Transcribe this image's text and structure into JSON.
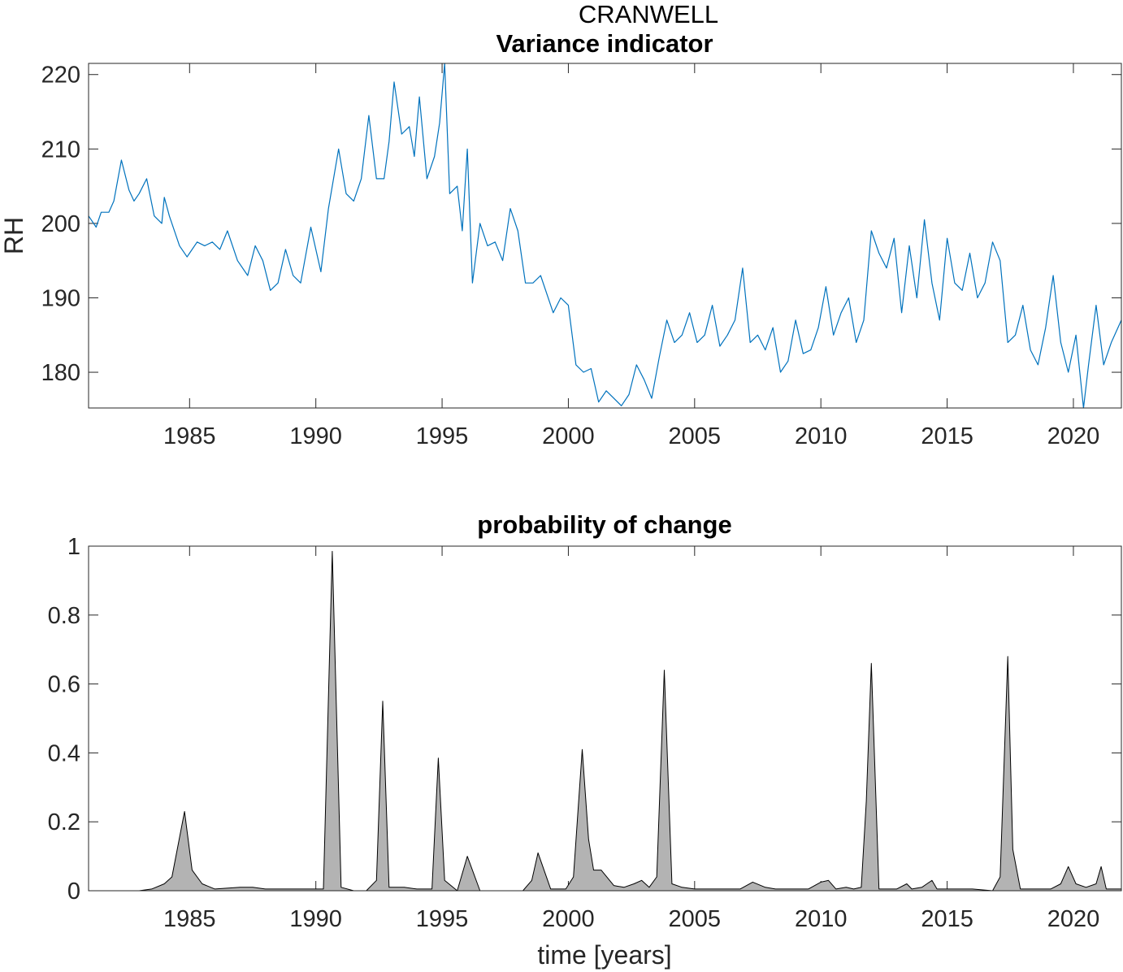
{
  "figure": {
    "suptitle": "CRANWELL",
    "colors": {
      "line": "#0072BD",
      "area_fill": "#B3B3B3",
      "area_edge": "#000000",
      "axes": "#262626"
    }
  },
  "chart_data": [
    {
      "type": "line",
      "title": "Variance indicator",
      "xlabel": "",
      "ylabel": "RH",
      "xlim": [
        1981.0,
        2021.9
      ],
      "ylim": [
        175.2,
        221.5
      ],
      "xticks": [
        1985,
        1990,
        1995,
        2000,
        2005,
        2010,
        2015,
        2020
      ],
      "yticks": [
        180,
        190,
        200,
        210,
        220
      ],
      "grid": false,
      "series": [
        {
          "x": [
            1981.0,
            1981.3,
            1981.5,
            1981.8,
            1982.0,
            1982.3,
            1982.6,
            1982.8,
            1983.0,
            1983.3,
            1983.6,
            1983.9,
            1984.0,
            1984.2,
            1984.6,
            1984.9,
            1985.0,
            1985.3,
            1985.6,
            1985.9,
            1986.2,
            1986.5,
            1986.9,
            1987.3,
            1987.6,
            1987.9,
            1988.2,
            1988.5,
            1988.8,
            1989.1,
            1989.4,
            1989.8,
            1990.2,
            1990.5,
            1990.9,
            1991.2,
            1991.5,
            1991.8,
            1992.1,
            1992.4,
            1992.7,
            1992.9,
            1993.1,
            1993.4,
            1993.7,
            1993.9,
            1994.1,
            1994.4,
            1994.7,
            1994.9,
            1995.1,
            1995.3,
            1995.6,
            1995.8,
            1996.0,
            1996.2,
            1996.5,
            1996.8,
            1997.1,
            1997.4,
            1997.7,
            1998.0,
            1998.3,
            1998.6,
            1998.9,
            1999.1,
            1999.4,
            1999.7,
            2000.0,
            2000.3,
            2000.6,
            2000.9,
            2001.2,
            2001.5,
            2001.8,
            2002.1,
            2002.4,
            2002.7,
            2003.0,
            2003.3,
            2003.6,
            2003.9,
            2004.2,
            2004.5,
            2004.8,
            2005.1,
            2005.4,
            2005.7,
            2006.0,
            2006.3,
            2006.6,
            2006.9,
            2007.2,
            2007.5,
            2007.8,
            2008.1,
            2008.4,
            2008.7,
            2009.0,
            2009.3,
            2009.6,
            2009.9,
            2010.2,
            2010.5,
            2010.8,
            2011.1,
            2011.4,
            2011.7,
            2012.0,
            2012.3,
            2012.6,
            2012.9,
            2013.2,
            2013.5,
            2013.8,
            2014.1,
            2014.4,
            2014.7,
            2015.0,
            2015.3,
            2015.6,
            2015.9,
            2016.2,
            2016.5,
            2016.8,
            2017.1,
            2017.4,
            2017.7,
            2018.0,
            2018.3,
            2018.6,
            2018.9,
            2019.2,
            2019.5,
            2019.8,
            2020.1,
            2020.4,
            2020.6,
            2020.9,
            2021.2,
            2021.5,
            2021.9
          ],
          "y": [
            201.0,
            199.5,
            201.5,
            201.5,
            203.0,
            208.5,
            204.5,
            203.0,
            204.0,
            206.0,
            201.0,
            200.0,
            203.5,
            201.0,
            197.0,
            195.5,
            196.0,
            197.5,
            197.0,
            197.5,
            196.5,
            199.0,
            195.0,
            193.0,
            197.0,
            195.0,
            191.0,
            192.0,
            196.5,
            193.0,
            192.0,
            199.5,
            193.5,
            202.0,
            210.0,
            204.0,
            203.0,
            206.0,
            214.5,
            206.0,
            206.0,
            211.0,
            219.0,
            212.0,
            213.0,
            209.0,
            217.0,
            206.0,
            209.0,
            213.5,
            221.5,
            204.0,
            205.0,
            199.0,
            210.0,
            192.0,
            200.0,
            197.0,
            197.5,
            195.0,
            202.0,
            199.0,
            192.0,
            192.0,
            193.0,
            191.0,
            188.0,
            190.0,
            189.0,
            181.0,
            180.0,
            180.5,
            176.0,
            177.5,
            176.5,
            175.5,
            177.0,
            181.0,
            179.0,
            176.5,
            182.0,
            187.0,
            184.0,
            185.0,
            188.0,
            184.0,
            185.0,
            189.0,
            183.5,
            185.0,
            187.0,
            194.0,
            184.0,
            185.0,
            183.0,
            186.0,
            180.0,
            181.5,
            187.0,
            182.5,
            183.0,
            186.0,
            191.5,
            185.0,
            188.0,
            190.0,
            184.0,
            187.0,
            199.0,
            196.0,
            194.0,
            198.0,
            188.0,
            197.0,
            190.0,
            200.5,
            192.0,
            187.0,
            198.0,
            192.0,
            191.0,
            196.0,
            190.0,
            192.0,
            197.5,
            195.0,
            184.0,
            185.0,
            189.0,
            183.0,
            181.0,
            186.0,
            193.0,
            184.0,
            180.0,
            185.0,
            175.0,
            181.0,
            189.0,
            181.0,
            184.0,
            187.0
          ]
        }
      ]
    },
    {
      "type": "area",
      "title": "probability of change",
      "xlabel": "time [years]",
      "ylabel": "",
      "xlim": [
        1981.0,
        2021.9
      ],
      "ylim": [
        0,
        1
      ],
      "xticks": [
        1985,
        1990,
        1995,
        2000,
        2005,
        2010,
        2015,
        2020
      ],
      "yticks": [
        0,
        0.2,
        0.4,
        0.6,
        0.8,
        1
      ],
      "ytick_labels": [
        "0",
        "0.2",
        "0.4",
        "0.6",
        "0.8",
        "1"
      ],
      "grid": false,
      "series": [
        {
          "x": [
            1981.0,
            1982.0,
            1983.0,
            1983.5,
            1984.0,
            1984.3,
            1984.8,
            1985.1,
            1985.5,
            1986.0,
            1987.0,
            1987.5,
            1988.0,
            1989.0,
            1989.5,
            1990.0,
            1990.3,
            1990.65,
            1991.0,
            1991.5,
            1992.0,
            1992.4,
            1992.65,
            1992.9,
            1993.5,
            1994.0,
            1994.6,
            1994.85,
            1995.1,
            1995.6,
            1996.0,
            1996.5,
            1997.0,
            1997.8,
            1998.2,
            1998.55,
            1998.8,
            1999.3,
            1999.9,
            2000.2,
            2000.55,
            2000.8,
            2001.0,
            2001.3,
            2001.8,
            2002.2,
            2002.6,
            2002.9,
            2003.2,
            2003.5,
            2003.8,
            2004.1,
            2004.5,
            2005.0,
            2006.0,
            2006.8,
            2007.3,
            2007.8,
            2008.2,
            2008.8,
            2009.5,
            2010.0,
            2010.3,
            2010.6,
            2011.0,
            2011.3,
            2011.6,
            2011.8,
            2012.0,
            2012.3,
            2013.0,
            2013.4,
            2013.6,
            2014.0,
            2014.2,
            2014.4,
            2014.6,
            2015.0,
            2015.5,
            2016.0,
            2016.8,
            2017.1,
            2017.4,
            2017.6,
            2017.9,
            2018.3,
            2018.8,
            2019.1,
            2019.5,
            2019.8,
            2020.1,
            2020.5,
            2020.9,
            2021.1,
            2021.3,
            2021.9
          ],
          "y": [
            0.0,
            0.0,
            0.0,
            0.005,
            0.02,
            0.04,
            0.23,
            0.06,
            0.02,
            0.005,
            0.01,
            0.01,
            0.005,
            0.005,
            0.005,
            0.005,
            0.005,
            0.985,
            0.01,
            0.0,
            0.0,
            0.03,
            0.55,
            0.01,
            0.01,
            0.005,
            0.005,
            0.385,
            0.03,
            0.0,
            0.1,
            0.0,
            0.0,
            0.0,
            0.0,
            0.03,
            0.11,
            0.005,
            0.005,
            0.04,
            0.41,
            0.15,
            0.06,
            0.06,
            0.015,
            0.01,
            0.02,
            0.03,
            0.01,
            0.04,
            0.64,
            0.02,
            0.01,
            0.005,
            0.005,
            0.005,
            0.025,
            0.01,
            0.005,
            0.005,
            0.005,
            0.025,
            0.03,
            0.005,
            0.01,
            0.005,
            0.01,
            0.26,
            0.66,
            0.005,
            0.005,
            0.02,
            0.005,
            0.01,
            0.02,
            0.03,
            0.005,
            0.005,
            0.005,
            0.005,
            0.0,
            0.04,
            0.68,
            0.12,
            0.005,
            0.005,
            0.005,
            0.005,
            0.02,
            0.07,
            0.02,
            0.01,
            0.02,
            0.07,
            0.005,
            0.005
          ]
        }
      ]
    }
  ]
}
